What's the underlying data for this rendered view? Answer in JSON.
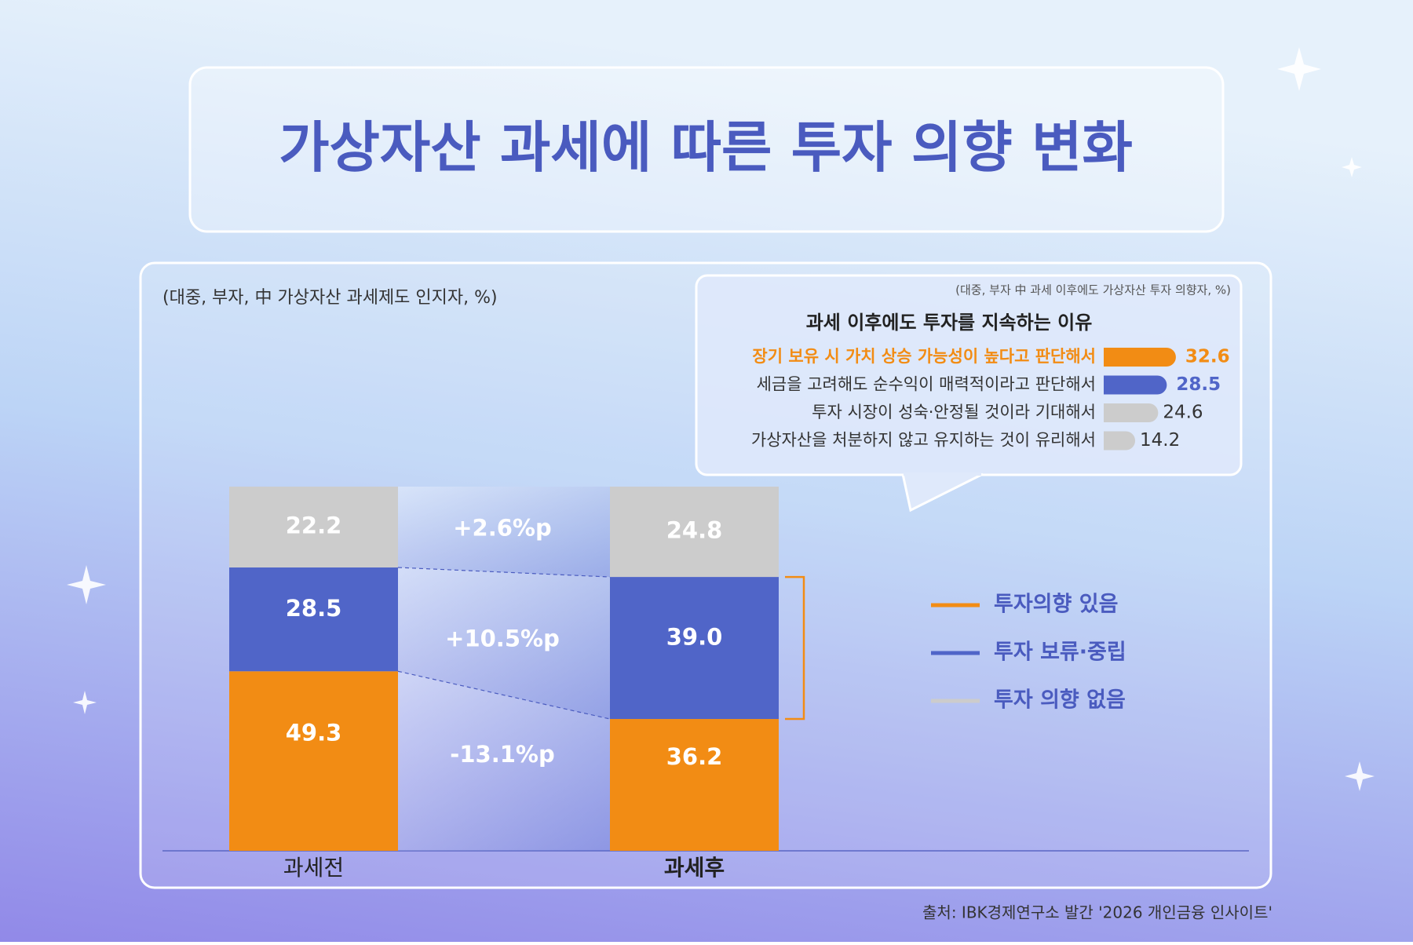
{
  "title": "가상자산 과세에 따른 투자 의향 변화",
  "source": "출처: IBK경제연구소 발간 '2026 개인금융 인사이트'",
  "chart_data": [
    {
      "type": "stacked_bar",
      "subtitle": "(대중, 부자, 中 가상자산 과세제도 인지자, %)",
      "categories": [
        "과세전",
        "과세후"
      ],
      "series": [
        {
          "name": "투자의향 있음",
          "color": "#f28c14",
          "values": [
            49.3,
            36.2
          ]
        },
        {
          "name": "투자 보류·중립",
          "color": "#5065c8",
          "values": [
            28.5,
            39
          ],
          "value_labels": [
            "28.5",
            "39.0"
          ]
        },
        {
          "name": "투자 의향 없음",
          "color": "#cccccc",
          "values": [
            22.2,
            24.8
          ]
        }
      ],
      "annotations": [
        "-13.1%p",
        "+10.5%p",
        "+2.6%p"
      ]
    },
    {
      "type": "hbar",
      "subtitle": "(대중, 부자 中 과세 이후에도 가상자산 투자 의향자, %)",
      "title": "과세 이후에도 투자를 지속하는 이유",
      "categories": [
        "장기 보유 시 가치 상승 가능성이 높다고 판단해서",
        "세금을 고려해도 순수익이 매력적이라고 판단해서",
        "투자 시장이 성숙·안정될 것이라 기대해서",
        "가상자산을 처분하지 않고 유지하는 것이 유리해서"
      ],
      "values": [
        32.6,
        28.5,
        24.6,
        14.2
      ],
      "colors": [
        "#f28c14",
        "#5065c8",
        "#cccccc",
        "#cccccc"
      ]
    }
  ]
}
